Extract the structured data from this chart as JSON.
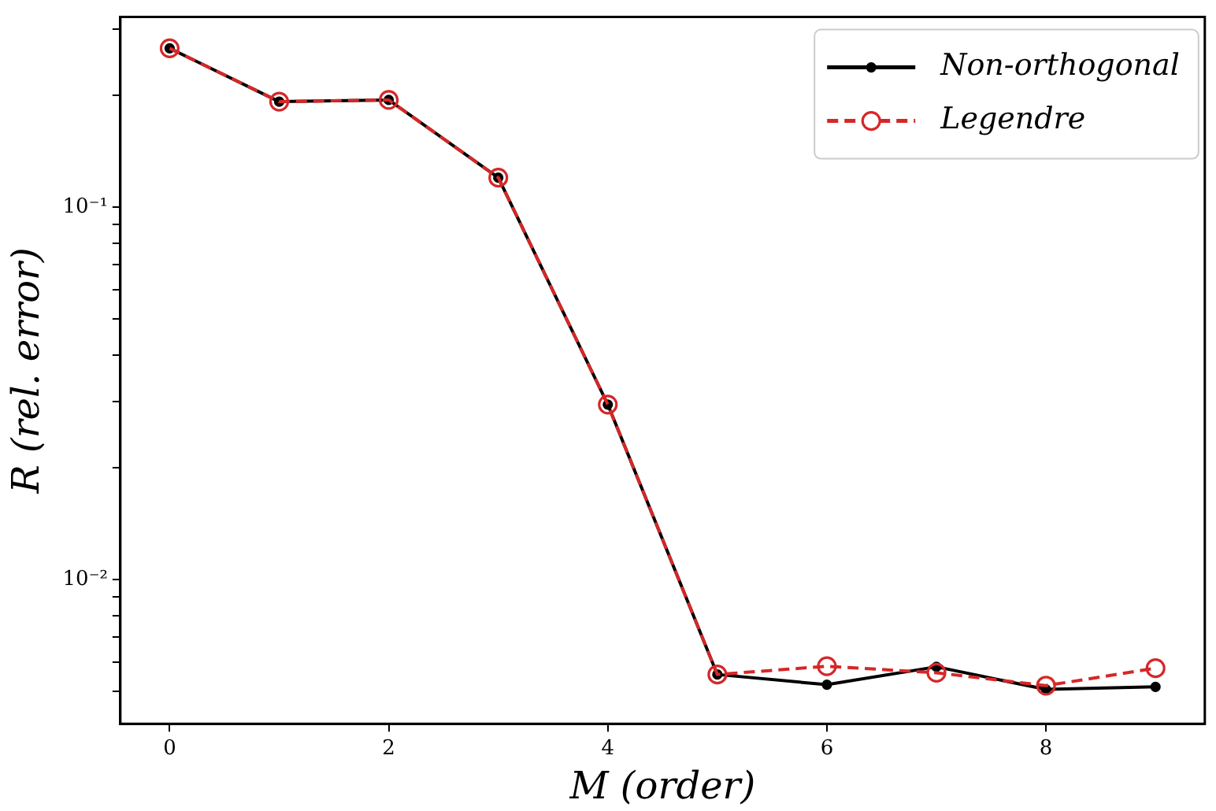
{
  "chart_data": {
    "type": "line",
    "xlabel": "M (order)",
    "ylabel": "R (rel. error)",
    "x": [
      0,
      1,
      2,
      3,
      4,
      5,
      6,
      7,
      8,
      9
    ],
    "series": [
      {
        "name": "Non-orthogonal",
        "color": "#000000",
        "line_style": "solid",
        "marker": "circle",
        "values": [
          0.267,
          0.192,
          0.194,
          0.12,
          0.0295,
          0.00556,
          0.00522,
          0.00583,
          0.00507,
          0.00515
        ]
      },
      {
        "name": "Legendre",
        "color": "#d62728",
        "line_style": "dashed",
        "marker": "circle",
        "values": [
          0.267,
          0.192,
          0.194,
          0.12,
          0.0295,
          0.00556,
          0.00585,
          0.00562,
          0.00519,
          0.00578
        ]
      }
    ],
    "log": "y",
    "grid": false,
    "legend": "top right",
    "xlim": [
      -0.45,
      9.45
    ],
    "xticks": [
      0,
      2,
      4,
      6,
      8
    ],
    "ylim": [
      0.0041,
      0.324
    ],
    "yticks": [
      {
        "value": 0.3,
        "label": null
      },
      {
        "value": 0.2,
        "label": null
      },
      {
        "value": 0.1,
        "label": "10⁻¹"
      },
      {
        "value": 0.09,
        "label": null
      },
      {
        "value": 0.08,
        "label": null
      },
      {
        "value": 0.07,
        "label": null
      },
      {
        "value": 0.06,
        "label": null
      },
      {
        "value": 0.05,
        "label": null
      },
      {
        "value": 0.04,
        "label": null
      },
      {
        "value": 0.03,
        "label": null
      },
      {
        "value": 0.02,
        "label": null
      },
      {
        "value": 0.01,
        "label": "10⁻²"
      },
      {
        "value": 0.009,
        "label": null
      },
      {
        "value": 0.008,
        "label": null
      },
      {
        "value": 0.007,
        "label": null
      },
      {
        "value": 0.006,
        "label": null
      },
      {
        "value": 0.005,
        "label": null
      }
    ]
  }
}
